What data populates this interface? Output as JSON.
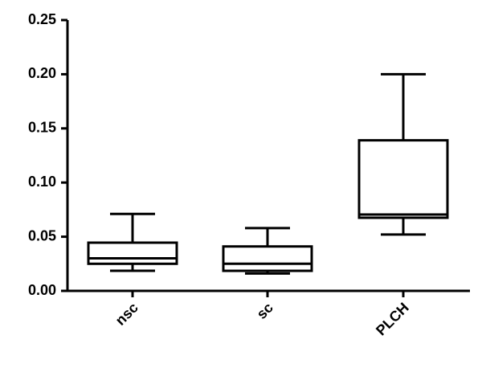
{
  "chart_data": {
    "type": "box",
    "categories": [
      "nsc",
      "sc",
      "PLCH"
    ],
    "min": [
      0.0185,
      0.016,
      0.052
    ],
    "q1": [
      0.025,
      0.0185,
      0.0675
    ],
    "median": [
      0.03,
      0.025,
      0.0705
    ],
    "q3": [
      0.0445,
      0.041,
      0.139
    ],
    "max": [
      0.071,
      0.058,
      0.2
    ],
    "color": "#000000",
    "ylim": [
      0,
      0.25
    ],
    "yticks": [
      {
        "value": 0,
        "label": "0.00"
      },
      {
        "value": 0.05,
        "label": "0.05"
      },
      {
        "value": 0.1,
        "label": "0.10"
      },
      {
        "value": 0.15,
        "label": "0.15"
      },
      {
        "value": 0.2,
        "label": "0.20"
      },
      {
        "value": 0.25,
        "label": "0.25"
      }
    ],
    "grid": false
  }
}
